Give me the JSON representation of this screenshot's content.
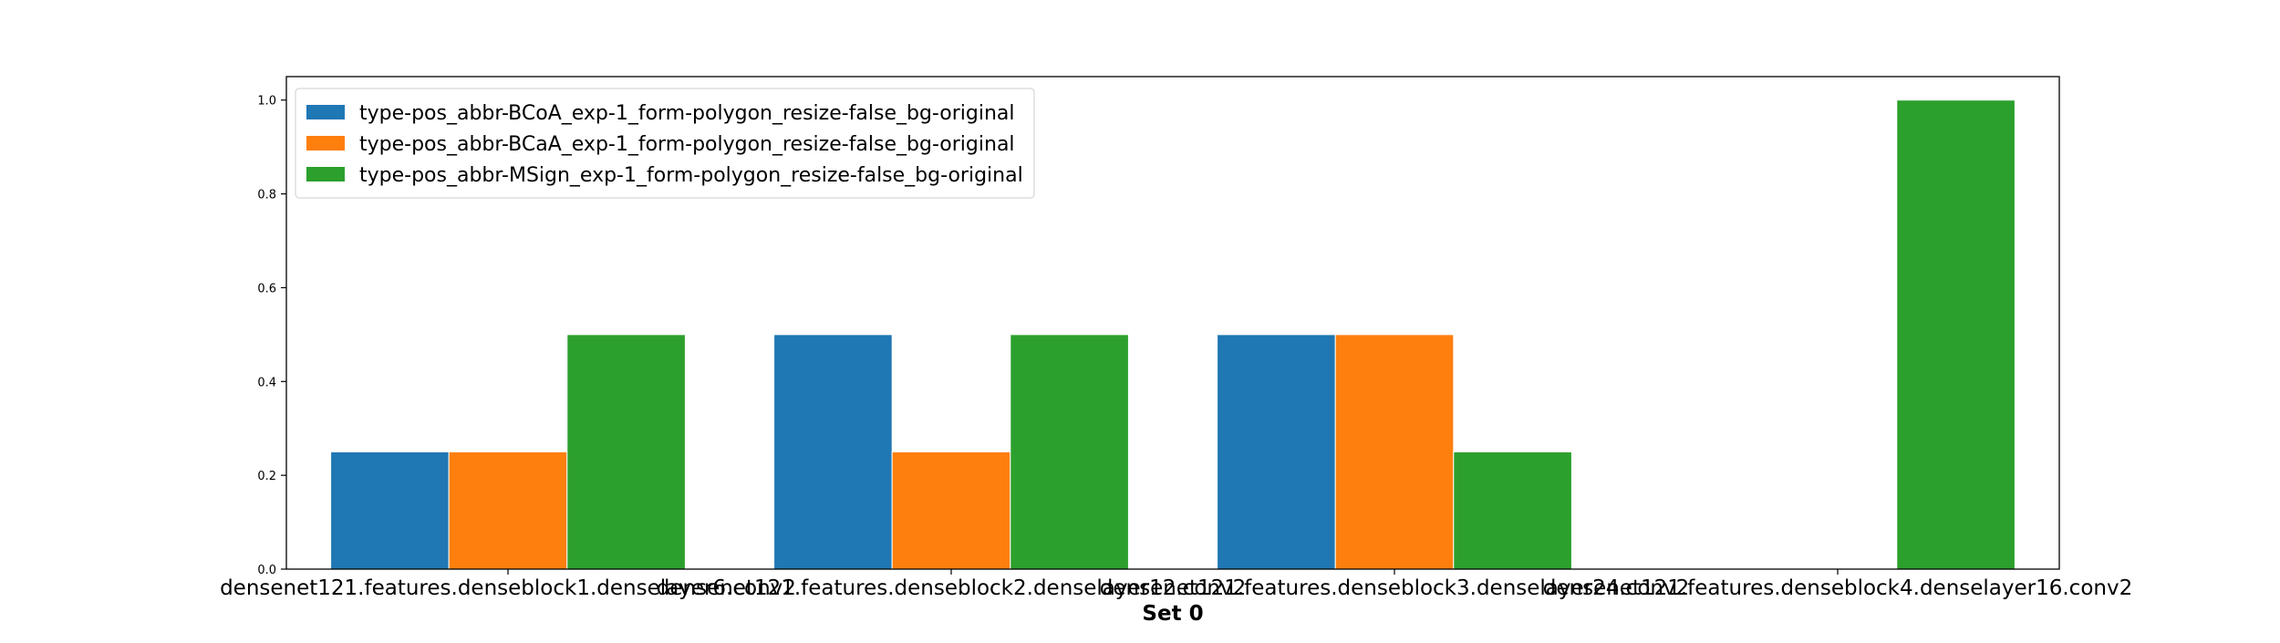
{
  "chart_data": {
    "type": "bar",
    "title": "",
    "xlabel": "Set 0",
    "ylabel": "",
    "ylim": [
      0,
      1.05
    ],
    "yticks": [
      "0.0",
      "0.2",
      "0.4",
      "0.6",
      "0.8",
      "1.0"
    ],
    "categories": [
      "densenet121.features.denseblock1.denselayer6.conv2",
      "densenet121.features.denseblock2.denselayer12.conv2",
      "densenet121.features.denseblock3.denselayer24.conv2",
      "densenet121.features.denseblock4.denselayer16.conv2"
    ],
    "series": [
      {
        "name": "type-pos_abbr-BCoA_exp-1_form-polygon_resize-false_bg-original",
        "color": "#1f77b4",
        "values": [
          0.25,
          0.5,
          0.5,
          0.0
        ]
      },
      {
        "name": "type-pos_abbr-BCaA_exp-1_form-polygon_resize-false_bg-original",
        "color": "#ff7f0e",
        "values": [
          0.25,
          0.25,
          0.5,
          0.0
        ]
      },
      {
        "name": "type-pos_abbr-MSign_exp-1_form-polygon_resize-false_bg-original",
        "color": "#2ca02c",
        "values": [
          0.5,
          0.5,
          0.25,
          1.0
        ]
      }
    ],
    "legend_position": "top-left",
    "grid": false
  }
}
